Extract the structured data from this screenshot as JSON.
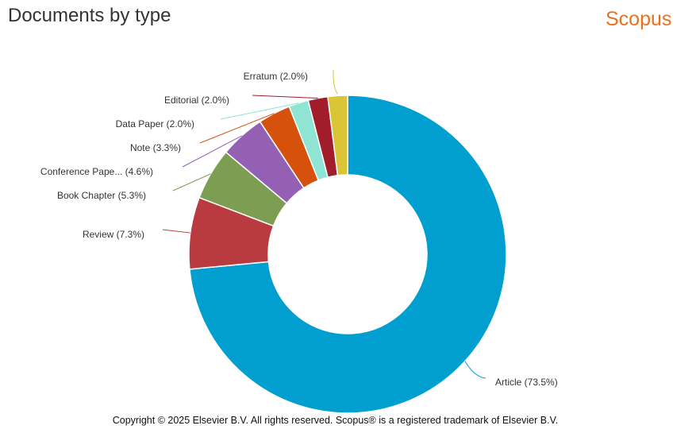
{
  "title": "Documents by type",
  "brand": {
    "name": "Scopus",
    "color": "#e9711c"
  },
  "footer": "Copyright © 2025 Elsevier B.V. All rights reserved. Scopus® is a registered trademark of Elsevier B.V.",
  "chart_data": {
    "type": "pie",
    "variant": "donut",
    "title": "Documents by type",
    "start": "12 o'clock",
    "direction": "clockwise",
    "slices": [
      {
        "label": "Article (73.5%)",
        "value": 73.5,
        "color": "#009fd0"
      },
      {
        "label": "Review (7.3%)",
        "value": 7.3,
        "color": "#b93a3f"
      },
      {
        "label": "Book Chapter (5.3%)",
        "value": 5.3,
        "color": "#7d9d53"
      },
      {
        "label": "Conference Pape... (4.6%)",
        "value": 4.6,
        "color": "#9360b4"
      },
      {
        "label": "Note (3.3%)",
        "value": 3.3,
        "color": "#d6510b"
      },
      {
        "label": "Data Paper (2.0%)",
        "value": 2.0,
        "color": "#8fe4d4"
      },
      {
        "label": "Editorial (2.0%)",
        "value": 2.0,
        "color": "#a11d2c"
      },
      {
        "label": "Erratum (2.0%)",
        "value": 2.0,
        "color": "#d9c536"
      }
    ]
  }
}
